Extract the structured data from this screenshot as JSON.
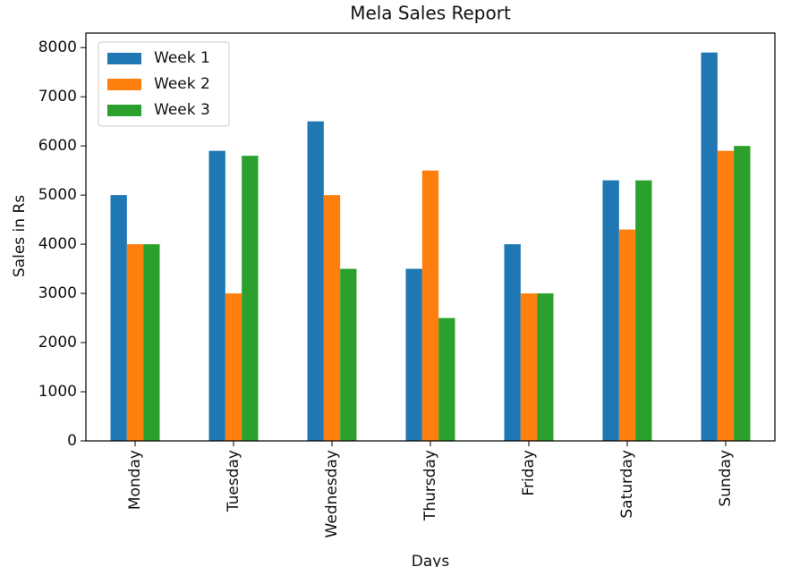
{
  "chart_data": {
    "type": "bar",
    "title": "Mela Sales Report",
    "x_label": "Days",
    "y_label": "Sales in Rs",
    "categories": [
      "Monday",
      "Tuesday",
      "Wednesday",
      "Thursday",
      "Friday",
      "Saturday",
      "Sunday"
    ],
    "series": [
      {
        "name": "Week 1",
        "color": "#1f77b4",
        "values": [
          5000,
          5900,
          6500,
          3500,
          4000,
          5300,
          7900
        ]
      },
      {
        "name": "Week 2",
        "color": "#ff7f0e",
        "values": [
          4000,
          3000,
          5000,
          5500,
          3000,
          4300,
          5900
        ]
      },
      {
        "name": "Week 3",
        "color": "#2ca02c",
        "values": [
          4000,
          5800,
          3500,
          2500,
          3000,
          5300,
          6000
        ]
      }
    ],
    "ylim": [
      0,
      8295
    ],
    "yticks": [
      0,
      1000,
      2000,
      3000,
      4000,
      5000,
      6000,
      7000,
      8000
    ],
    "legend": "upper-left"
  }
}
